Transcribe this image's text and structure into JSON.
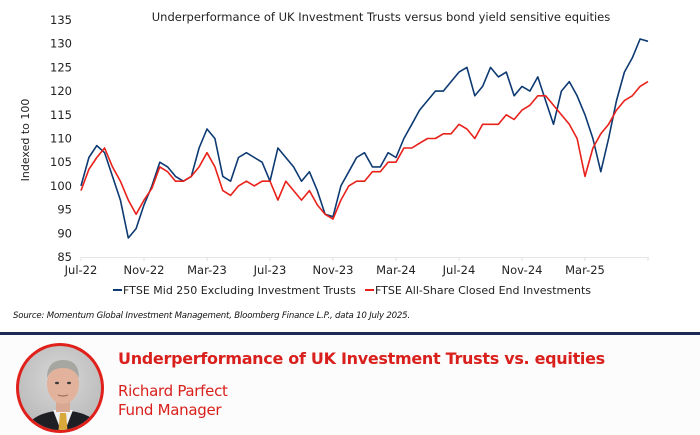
{
  "chart_data": {
    "type": "line",
    "title": "Underperformance of UK Investment Trusts versus bond yield sensitive equities",
    "xlabel": "",
    "ylabel": "Indexed to 100",
    "ylim": [
      85,
      135
    ],
    "yticks": [
      85,
      90,
      95,
      100,
      105,
      110,
      115,
      120,
      125,
      130,
      135
    ],
    "xlim": [
      0,
      36
    ],
    "xticks": [
      {
        "value": 0,
        "label": "Jul-22"
      },
      {
        "value": 4,
        "label": "Nov-22"
      },
      {
        "value": 8,
        "label": "Mar-23"
      },
      {
        "value": 12,
        "label": "Jul-23"
      },
      {
        "value": 16,
        "label": "Nov-23"
      },
      {
        "value": 20,
        "label": "Mar-24"
      },
      {
        "value": 24,
        "label": "Jul-24"
      },
      {
        "value": 28,
        "label": "Nov-24"
      },
      {
        "value": 32,
        "label": "Mar-25"
      }
    ],
    "x_unit": "months since Jul-22",
    "grid": false,
    "legend_position": "bottom",
    "series": [
      {
        "name": "FTSE Mid 250 Excluding Investment Trusts",
        "color": "#0d3a72",
        "x": [
          0,
          0.5,
          1,
          1.5,
          2,
          2.5,
          3,
          3.5,
          4,
          4.5,
          5,
          5.5,
          6,
          6.5,
          7,
          7.5,
          8,
          8.5,
          9,
          9.5,
          10,
          10.5,
          11,
          11.5,
          12,
          12.5,
          13,
          13.5,
          14,
          14.5,
          15,
          15.5,
          16,
          16.5,
          17,
          17.5,
          18,
          18.5,
          19,
          19.5,
          20,
          20.5,
          21,
          21.5,
          22,
          22.5,
          23,
          23.5,
          24,
          24.5,
          25,
          25.5,
          26,
          26.5,
          27,
          27.5,
          28,
          28.5,
          29,
          29.5,
          30,
          30.5,
          31,
          31.5,
          32,
          32.5,
          33,
          33.5,
          34,
          34.5,
          35,
          35.5,
          36
        ],
        "values": [
          100,
          106,
          108.5,
          107,
          102,
          97,
          89,
          91,
          96,
          100,
          105,
          104,
          102,
          101,
          102,
          108,
          112,
          110,
          102,
          101,
          106,
          107,
          106,
          105,
          101,
          108,
          106,
          104,
          101,
          103,
          99,
          94,
          93.5,
          100,
          103,
          106,
          107,
          104,
          104,
          107,
          106,
          110,
          113,
          116,
          118,
          120,
          120,
          122,
          124,
          125,
          119,
          121,
          125,
          123,
          124,
          119,
          121,
          120,
          123,
          118,
          113,
          120,
          122,
          119,
          115,
          110,
          103,
          110,
          118,
          124,
          127,
          131,
          130.5
        ]
      },
      {
        "name": "FTSE All-Share Closed End Investments",
        "color": "#e8211a",
        "x": [
          0,
          0.5,
          1,
          1.5,
          2,
          2.5,
          3,
          3.5,
          4,
          4.5,
          5,
          5.5,
          6,
          6.5,
          7,
          7.5,
          8,
          8.5,
          9,
          9.5,
          10,
          10.5,
          11,
          11.5,
          12,
          12.5,
          13,
          13.5,
          14,
          14.5,
          15,
          15.5,
          16,
          16.5,
          17,
          17.5,
          18,
          18.5,
          19,
          19.5,
          20,
          20.5,
          21,
          21.5,
          22,
          22.5,
          23,
          23.5,
          24,
          24.5,
          25,
          25.5,
          26,
          26.5,
          27,
          27.5,
          28,
          28.5,
          29,
          29.5,
          30,
          30.5,
          31,
          31.5,
          32,
          32.5,
          33,
          33.5,
          34,
          34.5,
          35,
          35.5,
          36
        ],
        "values": [
          99,
          103.5,
          106,
          108,
          104,
          101,
          97,
          94,
          97,
          99.5,
          104,
          103,
          101,
          101,
          102,
          104,
          107,
          104,
          99,
          98,
          100,
          101,
          100,
          101,
          101,
          97,
          101,
          99,
          97,
          99,
          96,
          94,
          93,
          97,
          100,
          101,
          101,
          103,
          103,
          105,
          105,
          108,
          108,
          109,
          110,
          110,
          111,
          111,
          113,
          112,
          110,
          113,
          113,
          113,
          115,
          114,
          116,
          117,
          119,
          119,
          117,
          115,
          113,
          110,
          102,
          108,
          111,
          113,
          116,
          118,
          119,
          121,
          122
        ]
      }
    ]
  },
  "source_note": "Source: Momentum Global Investment Management, Bloomberg Finance L.P., data 10 July 2025.",
  "footer": {
    "title": "Underperformance of UK Investment Trusts vs. equities",
    "name": "Richard Parfect",
    "role": "Fund Manager"
  },
  "colors": {
    "accent_red": "#d9201c",
    "divider_navy": "#1d2a55"
  }
}
